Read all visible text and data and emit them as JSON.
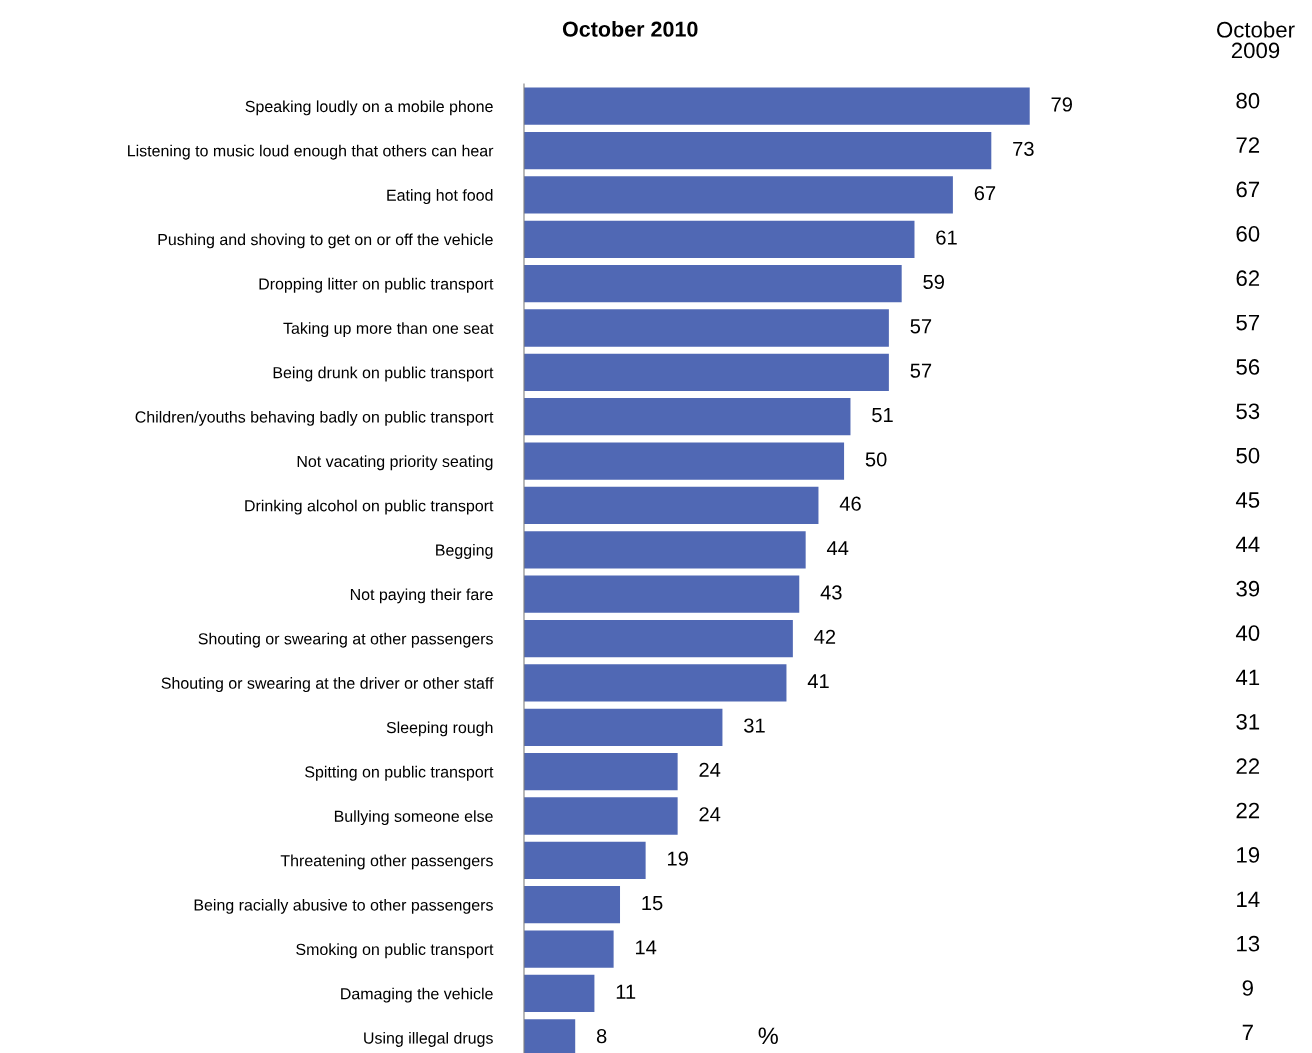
{
  "chart_data": [
    {
      "type": "bar",
      "orientation": "horizontal",
      "title": "October 2010",
      "color": "#5068b4",
      "data_labels": true,
      "tick_labels": "y",
      "grid": false,
      "legend": false,
      "categories": [
        "Speaking loudly on a mobile phone",
        "Listening to music loud enough that others can hear",
        "Eating hot food",
        "Pushing and shoving to get on or off the vehicle",
        "Dropping litter on public transport",
        "Taking up more than one seat",
        "Being drunk on public transport",
        "Children/youths behaving badly on public transport",
        "Not vacating priority seating",
        "Drinking alcohol on public transport",
        "Begging",
        "Not paying their fare",
        "Shouting or swearing at other passengers",
        "Shouting or swearing at the driver or other staff",
        "Sleeping rough",
        "Spitting on public transport",
        "Bullying someone else",
        "Threatening other passengers",
        "Being racially abusive to other passengers",
        "Smoking on public transport",
        "Damaging the vehicle",
        "Using illegal drugs"
      ],
      "values": [
        79,
        73,
        67,
        61,
        59,
        57,
        57,
        51,
        50,
        46,
        44,
        43,
        42,
        41,
        31,
        24,
        24,
        19,
        15,
        14,
        11,
        8
      ],
      "annotations": [
        "%"
      ]
    },
    {
      "type": "other",
      "title": "October\n2009",
      "data_labels": true,
      "values": [
        80,
        72,
        67,
        60,
        62,
        57,
        56,
        53,
        50,
        45,
        44,
        39,
        40,
        41,
        31,
        22,
        22,
        19,
        14,
        13,
        9,
        7
      ]
    }
  ]
}
